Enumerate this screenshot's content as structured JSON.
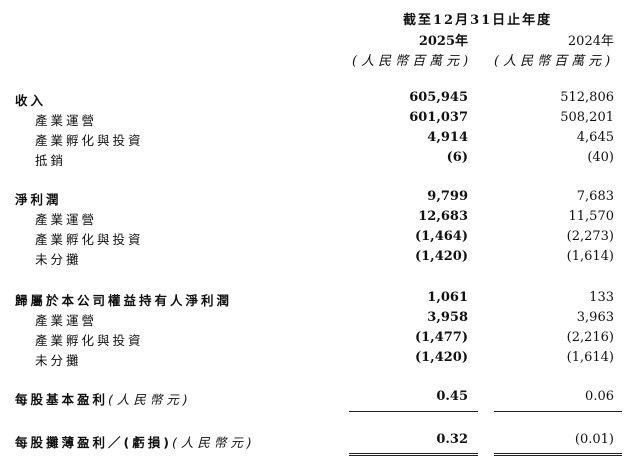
{
  "header": {
    "period": "截至12月31日止年度",
    "col1_year": "2025年",
    "col2_year": "2024年",
    "col1_unit": "(人民幣百萬元)",
    "col2_unit": "(人民幣百萬元)"
  },
  "rows": [
    {
      "label": "收入",
      "v2025": "605,945",
      "v2024": "512,806",
      "main": true
    },
    {
      "label": "產業運營",
      "v2025": "601,037",
      "v2024": "508,201"
    },
    {
      "label": "產業孵化與投資",
      "v2025": "4,914",
      "v2024": "4,645"
    },
    {
      "label": "抵銷",
      "v2025": "(6)",
      "v2024": "(40)"
    },
    {
      "label": "淨利潤",
      "v2025": "9,799",
      "v2024": "7,683",
      "main": true
    },
    {
      "label": "產業運營",
      "v2025": "12,683",
      "v2024": "11,570"
    },
    {
      "label": "產業孵化與投資",
      "v2025": "(1,464)",
      "v2024": "(2,273)"
    },
    {
      "label": "未分攤",
      "v2025": "(1,420)",
      "v2024": "(1,614)"
    },
    {
      "label": "歸屬於本公司權益持有人淨利潤",
      "v2025": "1,061",
      "v2024": "133",
      "main": true
    },
    {
      "label": "產業運營",
      "v2025": "3,958",
      "v2024": "3,963"
    },
    {
      "label": "產業孵化與投資",
      "v2025": "(1,477)",
      "v2024": "(2,216)"
    },
    {
      "label": "未分攤",
      "v2025": "(1,420)",
      "v2024": "(1,614)"
    }
  ],
  "eps": [
    {
      "label": "每股基本盈利",
      "unit": "(人民幣元)",
      "v2025": "0.45",
      "v2024": "0.06"
    },
    {
      "label": "每股攤薄盈利／(虧損)",
      "unit": "(人民幣元)",
      "v2025": "0.32",
      "v2024": "(0.01)"
    }
  ]
}
